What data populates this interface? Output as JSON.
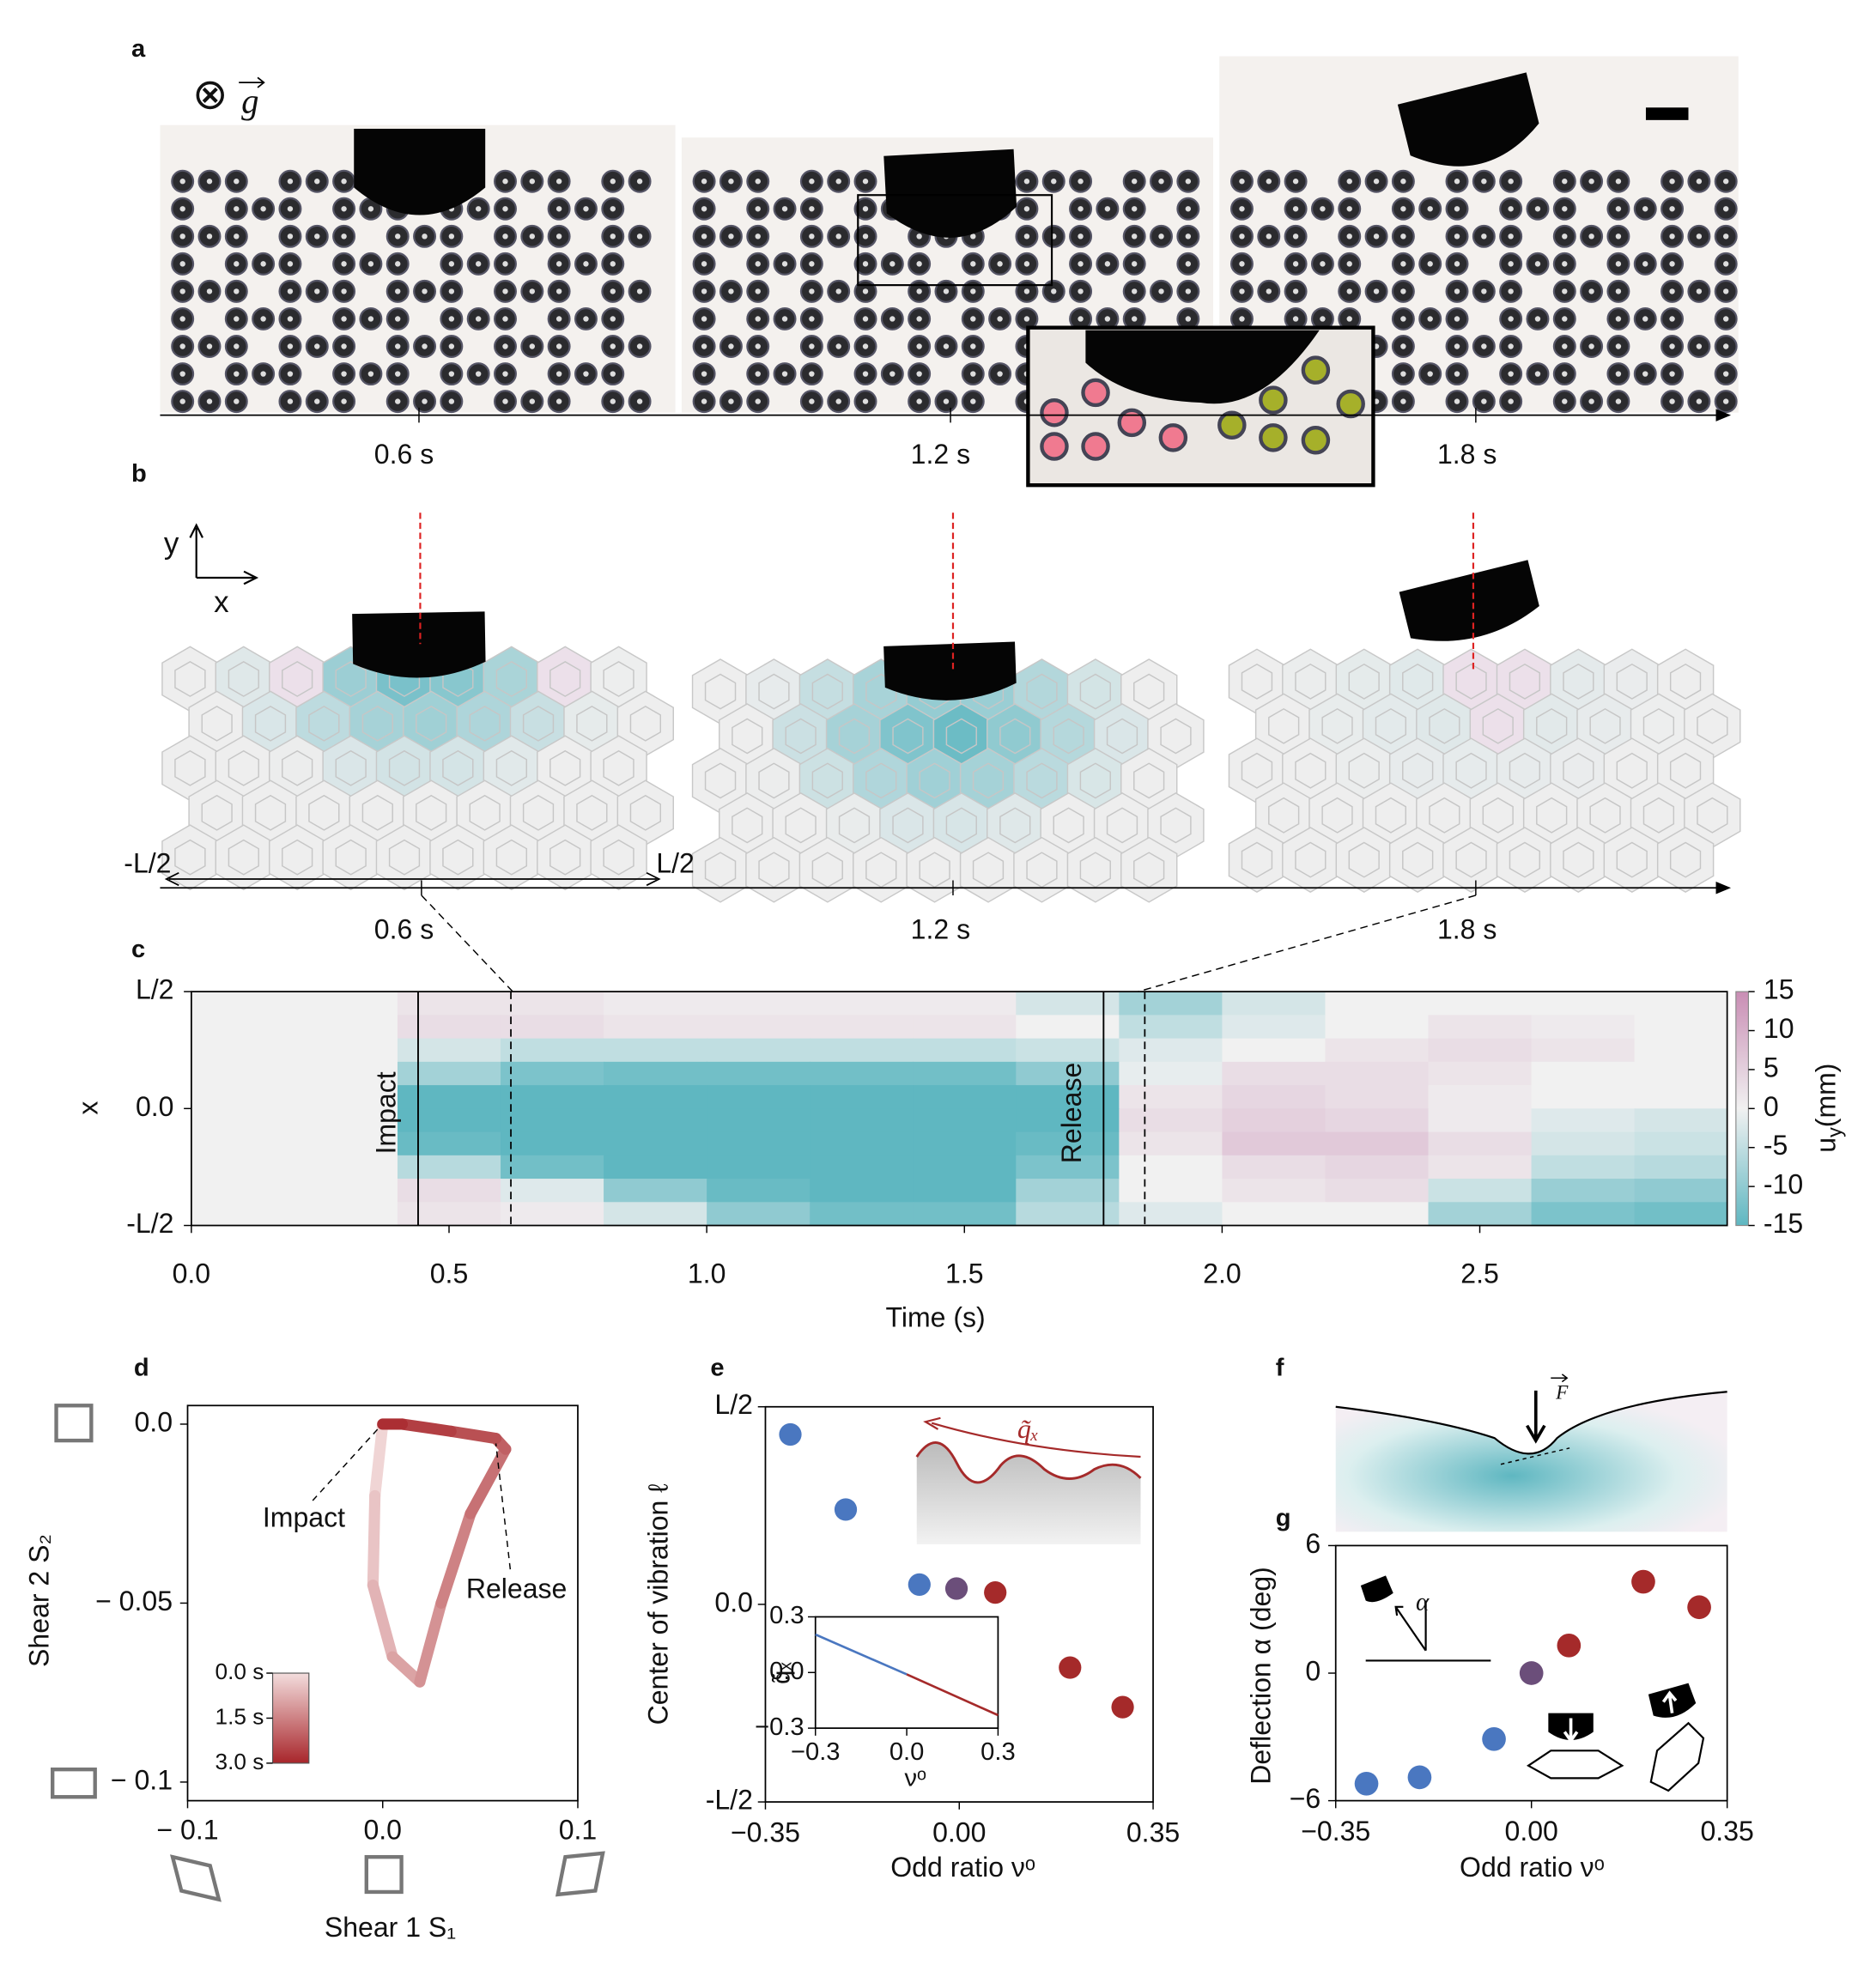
{
  "panel_labels": [
    "a",
    "b",
    "c",
    "d",
    "e",
    "f",
    "g"
  ],
  "panel_a": {
    "gravity_symbol": "⊗",
    "gravity_label": "g",
    "times": [
      "0.6 s",
      "1.2 s",
      "1.8 s"
    ]
  },
  "panel_b": {
    "axis_y": "y",
    "axis_x": "x",
    "left_edge": "-L/2",
    "right_edge": "L/2",
    "times": [
      "0.6 s",
      "1.2 s",
      "1.8 s"
    ]
  },
  "panel_f": {
    "force_label": "F"
  },
  "panel_g_inset": {
    "angle_label": "α"
  },
  "chart_data": [
    {
      "type": "heatmap",
      "xlabel": "Time (s)",
      "ylabel": "x",
      "xlim": [
        0,
        2.98
      ],
      "xticks": [
        {
          "value": 0,
          "label": "0.0"
        },
        0.5,
        {
          "value": 1,
          "label": "1.0"
        },
        1.5,
        {
          "value": 2,
          "label": "2.0"
        },
        2.5
      ],
      "ylim": [
        -0.5,
        0.5
      ],
      "yticks": [
        {
          "value": 0.5,
          "label": "L/2"
        },
        {
          "value": 0,
          "label": "0.0"
        },
        {
          "value": -0.5,
          "label": "-L/2"
        }
      ],
      "xbins": [
        0,
        0.2,
        0.4,
        0.6,
        0.8,
        1.0,
        1.2,
        1.4,
        1.6,
        1.8,
        2.0,
        2.2,
        2.4,
        2.6,
        2.8,
        2.98
      ],
      "ybins": [
        0.5,
        0.4,
        0.3,
        0.2,
        0.1,
        0,
        -0.1,
        -0.2,
        -0.3,
        -0.4,
        -0.5
      ],
      "z": [
        [
          0,
          0,
          2,
          2,
          1,
          1,
          1,
          1,
          -3,
          -8,
          -3,
          0,
          0,
          0,
          0
        ],
        [
          0,
          0,
          3,
          3,
          2,
          2,
          2,
          2,
          0,
          -5,
          -2,
          0,
          2,
          1,
          0
        ],
        [
          0,
          0,
          -3,
          -5,
          -5,
          -5,
          -5,
          -5,
          -4,
          -2,
          0,
          2,
          3,
          2,
          0
        ],
        [
          0,
          0,
          -8,
          -12,
          -13,
          -13,
          -13,
          -13,
          -10,
          -1,
          3,
          3,
          2,
          0,
          0
        ],
        [
          0,
          0,
          -15,
          -15,
          -15,
          -15,
          -15,
          -15,
          -15,
          2,
          4,
          3,
          1,
          0,
          0
        ],
        [
          0,
          0,
          -15,
          -15,
          -15,
          -15,
          -15,
          -15,
          -15,
          3,
          5,
          4,
          1,
          -2,
          -3
        ],
        [
          0,
          0,
          -14,
          -15,
          -15,
          -15,
          -15,
          -15,
          -14,
          2,
          6,
          6,
          3,
          -3,
          -4
        ],
        [
          0,
          0,
          -6,
          -13,
          -15,
          -15,
          -15,
          -15,
          -12,
          0,
          3,
          4,
          2,
          -5,
          -6
        ],
        [
          0,
          0,
          3,
          -2,
          -10,
          -14,
          -15,
          -15,
          -8,
          0,
          2,
          3,
          -4,
          -9,
          -10
        ],
        [
          0,
          0,
          2,
          1,
          -3,
          -10,
          -13,
          -13,
          -6,
          -2,
          0,
          0,
          -8,
          -12,
          -13
        ]
      ],
      "cmap": [
        "#5fb7c1",
        "#f1f1f1",
        "#c98db4"
      ],
      "zlim": [
        -15,
        15
      ],
      "colorbar_ticks": [
        15,
        10,
        5,
        0,
        -5,
        -10,
        -15
      ],
      "colorbar_label": {
        "base": "u",
        "sub": "y",
        "rest": "(mm)"
      },
      "events": [
        {
          "x": 0.44,
          "label": "Impact"
        },
        {
          "x": 1.77,
          "label": "Release"
        }
      ],
      "dashed_lines": [
        0.62,
        1.85
      ]
    },
    {
      "type": "line",
      "xlabel": "Shear 1 S₁",
      "ylabel": "Shear 2 S₂",
      "xlim": [
        -0.1,
        0.1
      ],
      "xticks": [
        {
          "value": -0.1,
          "label": "− 0.1"
        },
        {
          "value": 0,
          "label": "0.0"
        },
        0.1
      ],
      "ylim": [
        -0.1052,
        0.0052
      ],
      "yticks": [
        {
          "value": 0,
          "label": "0.0"
        },
        {
          "value": -0.05,
          "label": "− 0.05"
        },
        {
          "value": -0.1,
          "label": "− 0.1"
        }
      ],
      "x": [
        0,
        -0.004,
        -0.005,
        0.005,
        0.019,
        0.03,
        0.045,
        0.063,
        0.058,
        0.035,
        0.01,
        0
      ],
      "values": [
        0,
        -0.02,
        -0.045,
        -0.065,
        -0.072,
        -0.05,
        -0.025,
        -0.007,
        -0.004,
        -0.002,
        0,
        0
      ],
      "cmap": [
        "#f3dddd",
        "#a8262b"
      ],
      "annotations": [
        {
          "text": "Impact"
        },
        {
          "text": "Release"
        }
      ],
      "colorbar_lim": [
        0,
        3
      ],
      "colorbar_ticks": [
        {
          "value": 0,
          "label": "0.0 s"
        },
        {
          "value": 1.5,
          "label": "1.5 s"
        },
        {
          "value": 3,
          "label": "3.0 s"
        }
      ]
    },
    {
      "type": "scatter",
      "xlabel": "Odd ratio νᵒ",
      "ylabel": "Center of vibration ℓ",
      "xlim": [
        -0.35,
        0.35
      ],
      "xticks": [
        {
          "value": -0.35,
          "label": "−0.35"
        },
        {
          "value": 0,
          "label": "0.00"
        },
        0.35
      ],
      "ylim": [
        -0.5,
        0.5
      ],
      "yticks": [
        {
          "value": 0.5,
          "label": "L/2"
        },
        {
          "value": 0,
          "label": "0.0"
        },
        {
          "value": -0.5,
          "label": "-L/2"
        }
      ],
      "x": [
        -0.305,
        -0.205,
        -0.072,
        -0.005,
        0.065,
        0.2,
        0.295
      ],
      "values": [
        0.43,
        0.24,
        0.05,
        0.04,
        0.03,
        -0.16,
        -0.26
      ],
      "colors": [
        "#4a77c0",
        "#4a77c0",
        "#4a77c0",
        "#6b4e7a",
        "#a52a2a",
        "#a52a2a",
        "#a52a2a"
      ],
      "inset_label": "q̃ₓ"
    },
    {
      "type": "line",
      "xlabel": "νᵒ",
      "ylabel": "q̃ₓ",
      "xlim": [
        -0.3,
        0.3
      ],
      "xticks": [
        {
          "value": -0.3,
          "label": "−0.3"
        },
        {
          "value": 0,
          "label": "0.0"
        },
        0.3
      ],
      "ylim": [
        -0.3,
        0.3
      ],
      "yticks": [
        0.3,
        {
          "value": 0,
          "label": "0.0"
        },
        {
          "value": -0.3,
          "label": "−0.3"
        }
      ],
      "series": [
        {
          "color": "#4a77c0",
          "x": [
            -0.3,
            0
          ],
          "values": [
            0.205,
            -0.01
          ]
        },
        {
          "color": "#a52a2a",
          "x": [
            0,
            0.3
          ],
          "values": [
            -0.01,
            -0.23
          ]
        }
      ]
    },
    {
      "type": "scatter",
      "xlabel": "Odd ratio νᵒ",
      "ylabel": "Deflection α (deg)",
      "xlim": [
        -0.35,
        0.35
      ],
      "xticks": [
        {
          "value": -0.35,
          "label": "−0.35"
        },
        {
          "value": 0,
          "label": "0.00"
        },
        0.35
      ],
      "ylim": [
        -6,
        6
      ],
      "yticks": [
        6,
        0,
        {
          "value": -6,
          "label": "−6"
        }
      ],
      "x": [
        -0.295,
        -0.2,
        -0.067,
        0,
        0.067,
        0.2,
        0.3
      ],
      "values": [
        -5.2,
        -4.9,
        -3.1,
        0,
        1.3,
        4.3,
        3.1
      ],
      "colors": [
        "#4a77c0",
        "#4a77c0",
        "#4a77c0",
        "#6b4e7a",
        "#a52a2a",
        "#a52a2a",
        "#a52a2a"
      ]
    }
  ]
}
